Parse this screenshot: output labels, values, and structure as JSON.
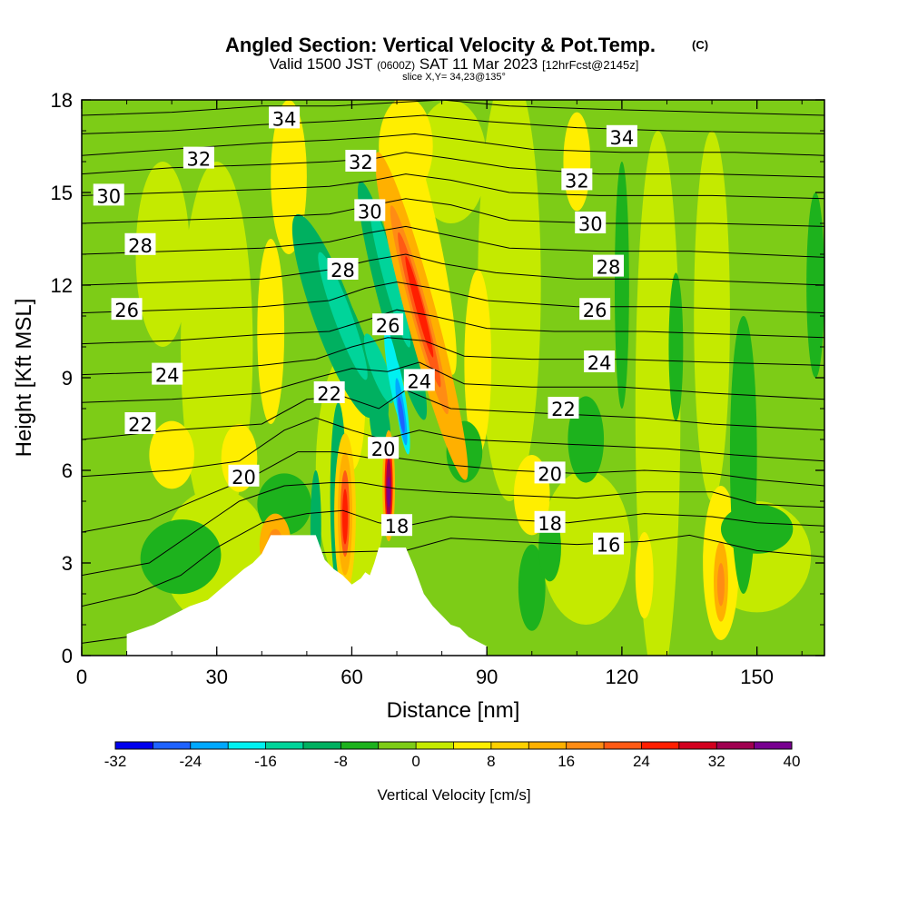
{
  "header": {
    "title": "Angled Section: Vertical Velocity & Pot.Temp.",
    "title_units": "(C)",
    "valid_prefix": "Valid 1500 JST",
    "valid_zulu": "(0600Z)",
    "valid_date": "SAT 11 Mar 2023",
    "forecast": "[12hrFcst@2145z]",
    "slice": "slice X,Y= 34,23@135°"
  },
  "colors": {
    "terrain": "#ffffff",
    "contour": "#000000",
    "frame": "#000000"
  },
  "chart_data": {
    "type": "heatmap",
    "xlabel": "Distance [nm]",
    "ylabel": "Height [Kft MSL]",
    "xlim": [
      0,
      165
    ],
    "ylim": [
      0,
      18
    ],
    "x_ticks": [
      0,
      30,
      60,
      90,
      120,
      150
    ],
    "y_ticks": [
      0,
      3,
      6,
      9,
      12,
      15,
      18
    ],
    "field": "Vertical Velocity [cm/s]",
    "colorbar": {
      "label": "Vertical Velocity [cm/s]",
      "tick_labels": [
        "-32",
        "-24",
        "-16",
        "-8",
        "0",
        "8",
        "16",
        "24",
        "32",
        "40"
      ],
      "levels": [
        -32,
        -28,
        -24,
        -20,
        -16,
        -12,
        -8,
        -4,
        0,
        4,
        8,
        12,
        16,
        20,
        24,
        28,
        32,
        36,
        40
      ],
      "colors": [
        "#0000ee",
        "#1e62ff",
        "#00a8ff",
        "#00f0f0",
        "#00d49a",
        "#00b060",
        "#1db21d",
        "#7dcc17",
        "#c4ea00",
        "#ffee00",
        "#ffd000",
        "#ffb000",
        "#ff8c14",
        "#ff5a14",
        "#ff1e00",
        "#d2001e",
        "#a00050",
        "#780090"
      ]
    },
    "updraft_cores": [
      {
        "x": 75,
        "y": 11.2,
        "peak": 28
      },
      {
        "x": 58,
        "y": 4.6,
        "peak": 28
      },
      {
        "x": 68,
        "y": 5.5,
        "peak": 40
      },
      {
        "x": 43,
        "y": 3.6,
        "peak": 20
      },
      {
        "x": 142,
        "y": 2.4,
        "peak": 20
      }
    ],
    "downdraft_cores": [
      {
        "x": 71,
        "y": 8.2,
        "peak": -32
      },
      {
        "x": 68,
        "y": 11.3,
        "peak": -16
      },
      {
        "x": 52,
        "y": 12.0,
        "peak": -12
      },
      {
        "x": 147,
        "y": 6.5,
        "peak": -12
      }
    ],
    "terrain_profile": {
      "x": [
        0,
        10,
        10,
        16,
        20,
        24,
        28,
        32,
        36,
        38,
        40,
        42,
        52,
        54,
        56,
        58,
        60,
        62,
        63,
        64,
        65,
        66,
        72,
        74,
        76,
        78,
        80,
        82,
        84,
        86,
        90,
        90
      ],
      "height": [
        0,
        0,
        0.7,
        1.0,
        1.3,
        1.6,
        1.8,
        2.3,
        2.8,
        3.0,
        3.3,
        3.9,
        3.9,
        3.1,
        2.8,
        2.6,
        2.3,
        2.5,
        2.7,
        2.6,
        3.0,
        3.5,
        3.5,
        2.8,
        2.0,
        1.6,
        1.3,
        1.0,
        0.9,
        0.6,
        0.3,
        0
      ]
    },
    "pot_temp_labels": [
      {
        "text": "34",
        "x": 45,
        "y": 17.4
      },
      {
        "text": "34",
        "x": 120,
        "y": 16.8
      },
      {
        "text": "32",
        "x": 26,
        "y": 16.1
      },
      {
        "text": "32",
        "x": 62,
        "y": 16.0
      },
      {
        "text": "32",
        "x": 110,
        "y": 15.4
      },
      {
        "text": "30",
        "x": 6,
        "y": 14.9
      },
      {
        "text": "30",
        "x": 64,
        "y": 14.4
      },
      {
        "text": "30",
        "x": 113,
        "y": 14.0
      },
      {
        "text": "28",
        "x": 13,
        "y": 13.3
      },
      {
        "text": "28",
        "x": 58,
        "y": 12.5
      },
      {
        "text": "28",
        "x": 117,
        "y": 12.6
      },
      {
        "text": "26",
        "x": 10,
        "y": 11.2
      },
      {
        "text": "26",
        "x": 68,
        "y": 10.7
      },
      {
        "text": "26",
        "x": 114,
        "y": 11.2
      },
      {
        "text": "24",
        "x": 19,
        "y": 9.1
      },
      {
        "text": "24",
        "x": 75,
        "y": 8.9
      },
      {
        "text": "24",
        "x": 115,
        "y": 9.5
      },
      {
        "text": "22",
        "x": 55,
        "y": 8.5
      },
      {
        "text": "22",
        "x": 13,
        "y": 7.5
      },
      {
        "text": "22",
        "x": 107,
        "y": 8.0
      },
      {
        "text": "20",
        "x": 67,
        "y": 6.7
      },
      {
        "text": "20",
        "x": 36,
        "y": 5.8
      },
      {
        "text": "20",
        "x": 104,
        "y": 5.9
      },
      {
        "text": "18",
        "x": 70,
        "y": 4.2
      },
      {
        "text": "18",
        "x": 104,
        "y": 4.3
      },
      {
        "text": "16",
        "x": 117,
        "y": 3.6
      }
    ],
    "pot_temp_lines": [
      {
        "value": 16,
        "pts": [
          [
            0,
            0.4
          ],
          [
            10,
            0.6
          ],
          [
            22,
            1.3
          ],
          [
            35,
            2.2
          ],
          [
            42,
            3.3
          ],
          [
            72,
            3.4
          ],
          [
            82,
            3.8
          ],
          [
            95,
            3.7
          ],
          [
            110,
            3.6
          ],
          [
            125,
            3.7
          ],
          [
            135,
            3.9
          ],
          [
            150,
            3.4
          ],
          [
            165,
            3.2
          ]
        ]
      },
      {
        "value": 18,
        "pts": [
          [
            0,
            1.6
          ],
          [
            12,
            2.0
          ],
          [
            22,
            2.6
          ],
          [
            30,
            3.5
          ],
          [
            40,
            4.3
          ],
          [
            50,
            4.6
          ],
          [
            58,
            4.7
          ],
          [
            66,
            4.3
          ],
          [
            72,
            4.2
          ],
          [
            82,
            4.5
          ],
          [
            95,
            4.4
          ],
          [
            108,
            4.3
          ],
          [
            125,
            4.6
          ],
          [
            140,
            4.5
          ],
          [
            150,
            4.3
          ],
          [
            165,
            4.2
          ]
        ]
      },
      {
        "value": 19,
        "pts": [
          [
            0,
            2.6
          ],
          [
            15,
            3.0
          ],
          [
            25,
            4.0
          ],
          [
            35,
            5.0
          ],
          [
            45,
            5.5
          ],
          [
            55,
            5.6
          ],
          [
            62,
            5.6
          ],
          [
            70,
            5.4
          ],
          [
            80,
            5.3
          ],
          [
            95,
            5.2
          ],
          [
            110,
            5.1
          ],
          [
            125,
            5.3
          ],
          [
            140,
            5.3
          ],
          [
            150,
            4.9
          ],
          [
            165,
            4.8
          ]
        ]
      },
      {
        "value": 20,
        "pts": [
          [
            0,
            4.0
          ],
          [
            15,
            4.4
          ],
          [
            28,
            5.2
          ],
          [
            38,
            5.8
          ],
          [
            48,
            6.6
          ],
          [
            56,
            6.6
          ],
          [
            64,
            6.4
          ],
          [
            70,
            6.4
          ],
          [
            80,
            6.2
          ],
          [
            95,
            6.0
          ],
          [
            110,
            5.9
          ],
          [
            125,
            6.0
          ],
          [
            140,
            5.9
          ],
          [
            150,
            5.7
          ],
          [
            165,
            5.5
          ]
        ]
      },
      {
        "value": 21,
        "pts": [
          [
            0,
            5.8
          ],
          [
            20,
            6.0
          ],
          [
            35,
            6.3
          ],
          [
            45,
            7.3
          ],
          [
            52,
            7.7
          ],
          [
            60,
            7.3
          ],
          [
            67,
            7.0
          ],
          [
            75,
            7.3
          ],
          [
            85,
            7.0
          ],
          [
            100,
            6.9
          ],
          [
            115,
            6.8
          ],
          [
            130,
            6.7
          ],
          [
            145,
            6.5
          ],
          [
            165,
            6.3
          ]
        ]
      },
      {
        "value": 22,
        "pts": [
          [
            0,
            7.0
          ],
          [
            20,
            7.3
          ],
          [
            40,
            7.5
          ],
          [
            50,
            8.3
          ],
          [
            58,
            8.4
          ],
          [
            66,
            8.0
          ],
          [
            72,
            8.6
          ],
          [
            82,
            8.0
          ],
          [
            95,
            7.9
          ],
          [
            110,
            7.8
          ],
          [
            125,
            7.7
          ],
          [
            140,
            7.5
          ],
          [
            165,
            7.3
          ]
        ]
      },
      {
        "value": 23,
        "pts": [
          [
            0,
            8.2
          ],
          [
            20,
            8.3
          ],
          [
            40,
            8.5
          ],
          [
            52,
            9.0
          ],
          [
            60,
            9.3
          ],
          [
            68,
            9.2
          ],
          [
            75,
            9.5
          ],
          [
            85,
            8.8
          ],
          [
            100,
            8.7
          ],
          [
            120,
            8.7
          ],
          [
            140,
            8.5
          ],
          [
            165,
            8.3
          ]
        ]
      },
      {
        "value": 24,
        "pts": [
          [
            0,
            9.1
          ],
          [
            20,
            9.2
          ],
          [
            40,
            9.4
          ],
          [
            52,
            9.6
          ],
          [
            60,
            10.0
          ],
          [
            68,
            10.3
          ],
          [
            76,
            10.2
          ],
          [
            85,
            9.7
          ],
          [
            100,
            9.6
          ],
          [
            120,
            9.6
          ],
          [
            140,
            9.5
          ],
          [
            165,
            9.4
          ]
        ]
      },
      {
        "value": 25,
        "pts": [
          [
            0,
            10.1
          ],
          [
            20,
            10.2
          ],
          [
            40,
            10.4
          ],
          [
            55,
            10.5
          ],
          [
            64,
            10.9
          ],
          [
            70,
            11.2
          ],
          [
            78,
            11.0
          ],
          [
            90,
            10.6
          ],
          [
            105,
            10.5
          ],
          [
            125,
            10.5
          ],
          [
            145,
            10.4
          ],
          [
            165,
            10.3
          ]
        ]
      },
      {
        "value": 26,
        "pts": [
          [
            0,
            11.1
          ],
          [
            20,
            11.2
          ],
          [
            40,
            11.3
          ],
          [
            55,
            11.5
          ],
          [
            63,
            11.9
          ],
          [
            70,
            12.1
          ],
          [
            78,
            11.9
          ],
          [
            90,
            11.5
          ],
          [
            110,
            11.3
          ],
          [
            130,
            11.3
          ],
          [
            165,
            11.1
          ]
        ]
      },
      {
        "value": 27,
        "pts": [
          [
            0,
            12.0
          ],
          [
            20,
            12.1
          ],
          [
            40,
            12.2
          ],
          [
            55,
            12.5
          ],
          [
            64,
            12.8
          ],
          [
            72,
            13.0
          ],
          [
            80,
            12.7
          ],
          [
            92,
            12.4
          ],
          [
            110,
            12.2
          ],
          [
            130,
            12.2
          ],
          [
            165,
            12.0
          ]
        ]
      },
      {
        "value": 28,
        "pts": [
          [
            0,
            13.0
          ],
          [
            20,
            13.1
          ],
          [
            40,
            13.2
          ],
          [
            55,
            13.4
          ],
          [
            64,
            13.7
          ],
          [
            72,
            13.9
          ],
          [
            82,
            13.6
          ],
          [
            95,
            13.2
          ],
          [
            115,
            13.1
          ],
          [
            135,
            13.1
          ],
          [
            165,
            12.9
          ]
        ]
      },
      {
        "value": 29,
        "pts": [
          [
            0,
            14.0
          ],
          [
            20,
            14.1
          ],
          [
            40,
            14.2
          ],
          [
            55,
            14.3
          ],
          [
            65,
            14.6
          ],
          [
            72,
            14.8
          ],
          [
            82,
            14.6
          ],
          [
            95,
            14.1
          ],
          [
            115,
            14.0
          ],
          [
            140,
            14.0
          ],
          [
            165,
            13.9
          ]
        ]
      },
      {
        "value": 30,
        "pts": [
          [
            0,
            14.9
          ],
          [
            20,
            15.0
          ],
          [
            40,
            15.1
          ],
          [
            55,
            15.2
          ],
          [
            65,
            15.4
          ],
          [
            72,
            15.6
          ],
          [
            82,
            15.4
          ],
          [
            95,
            15.0
          ],
          [
            115,
            14.9
          ],
          [
            140,
            14.9
          ],
          [
            165,
            14.8
          ]
        ]
      },
      {
        "value": 31,
        "pts": [
          [
            0,
            15.6
          ],
          [
            20,
            15.8
          ],
          [
            40,
            15.9
          ],
          [
            55,
            16.0
          ],
          [
            65,
            16.1
          ],
          [
            72,
            16.3
          ],
          [
            82,
            16.1
          ],
          [
            95,
            15.8
          ],
          [
            115,
            15.6
          ],
          [
            140,
            15.6
          ],
          [
            165,
            15.5
          ]
        ]
      },
      {
        "value": 32,
        "pts": [
          [
            0,
            16.2
          ],
          [
            20,
            16.4
          ],
          [
            40,
            16.6
          ],
          [
            55,
            16.7
          ],
          [
            66,
            16.8
          ],
          [
            74,
            16.9
          ],
          [
            85,
            16.7
          ],
          [
            100,
            16.4
          ],
          [
            120,
            16.3
          ],
          [
            145,
            16.3
          ],
          [
            165,
            16.2
          ]
        ]
      },
      {
        "value": 33,
        "pts": [
          [
            0,
            16.9
          ],
          [
            20,
            17.0
          ],
          [
            40,
            17.2
          ],
          [
            55,
            17.3
          ],
          [
            66,
            17.4
          ],
          [
            76,
            17.5
          ],
          [
            90,
            17.3
          ],
          [
            110,
            17.1
          ],
          [
            130,
            17.0
          ],
          [
            165,
            16.9
          ]
        ]
      },
      {
        "value": 34,
        "pts": [
          [
            0,
            17.5
          ],
          [
            20,
            17.6
          ],
          [
            40,
            17.8
          ],
          [
            56,
            17.8
          ],
          [
            68,
            17.9
          ],
          [
            80,
            18.0
          ],
          [
            95,
            17.8
          ],
          [
            115,
            17.7
          ],
          [
            140,
            17.6
          ],
          [
            165,
            17.5
          ]
        ]
      }
    ]
  }
}
